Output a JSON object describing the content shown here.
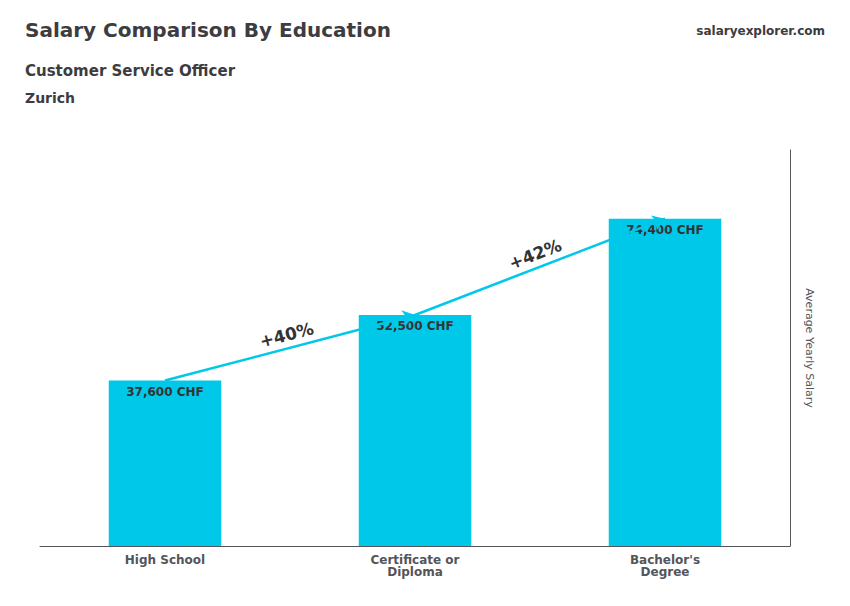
{
  "chart_data": {
    "type": "bar",
    "title": "Salary Comparison By Education",
    "subtitle": [
      "Customer Service Officer",
      "Zurich"
    ],
    "ylabel": "Average Yearly Salary",
    "categories": [
      "High School",
      "Certificate or\nDiploma",
      "Bachelor's\nDegree"
    ],
    "values": [
      37600,
      52500,
      74400
    ],
    "value_labels": [
      "37,600 CHF",
      "52,500 CHF",
      "74,400 CHF"
    ],
    "data_labels": true,
    "color": "#00c8e8",
    "ylim": [
      0,
      90000
    ],
    "tick_labels": false,
    "grid": false,
    "annotations": [
      "+40%",
      "+42%",
      "salaryexplorer.com"
    ]
  }
}
